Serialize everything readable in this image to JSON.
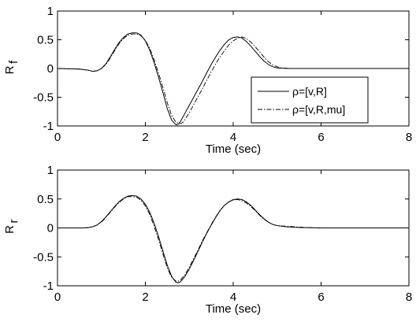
{
  "chart_data": [
    {
      "type": "line",
      "xlabel": "Time (sec)",
      "ylabel_main": "R",
      "ylabel_sub": "f",
      "xlim": [
        0,
        8
      ],
      "ylim": [
        -1,
        1
      ],
      "x_ticks": [
        "0",
        "2",
        "4",
        "6",
        "8"
      ],
      "y_ticks": [
        "1",
        "0.5",
        "0",
        "-0.5",
        "-1"
      ],
      "grid": false,
      "legend": {
        "position": "bottom-right",
        "entries": [
          "ρ=[v,R]",
          "ρ=[v,R,mu]"
        ]
      },
      "series": [
        {
          "name": "ρ=[v,R]",
          "style": "solid",
          "x": [
            0,
            0.5,
            0.7,
            0.8,
            0.9,
            1.0,
            1.1,
            1.2,
            1.3,
            1.4,
            1.5,
            1.6,
            1.7,
            1.8,
            1.9,
            2.0,
            2.1,
            2.2,
            2.3,
            2.4,
            2.5,
            2.6,
            2.7,
            2.75,
            2.8,
            2.9,
            3.0,
            3.1,
            3.2,
            3.3,
            3.4,
            3.5,
            3.6,
            3.7,
            3.8,
            3.9,
            4.0,
            4.1,
            4.2,
            4.3,
            4.4,
            4.5,
            4.6,
            4.7,
            4.8,
            4.9,
            5.0,
            5.1,
            5.2,
            5.3,
            5.4,
            5.5,
            6.0,
            8.0
          ],
          "y": [
            0,
            -0.01,
            -0.03,
            -0.05,
            -0.04,
            0.0,
            0.08,
            0.2,
            0.33,
            0.45,
            0.54,
            0.6,
            0.62,
            0.62,
            0.58,
            0.48,
            0.32,
            0.1,
            -0.15,
            -0.42,
            -0.7,
            -0.9,
            -0.98,
            -0.97,
            -0.92,
            -0.78,
            -0.64,
            -0.5,
            -0.36,
            -0.22,
            -0.07,
            0.07,
            0.2,
            0.32,
            0.42,
            0.5,
            0.54,
            0.55,
            0.53,
            0.47,
            0.39,
            0.3,
            0.21,
            0.13,
            0.07,
            0.03,
            0.01,
            0.005,
            0.002,
            0.0,
            0.0,
            0.0,
            0.0,
            0.0
          ]
        },
        {
          "name": "ρ=[v,R,mu]",
          "style": "dashdot",
          "x": [
            0,
            0.5,
            0.7,
            0.8,
            0.9,
            1.0,
            1.1,
            1.2,
            1.3,
            1.4,
            1.5,
            1.6,
            1.7,
            1.8,
            1.9,
            2.0,
            2.1,
            2.2,
            2.3,
            2.4,
            2.5,
            2.6,
            2.7,
            2.8,
            2.85,
            2.9,
            3.0,
            3.1,
            3.2,
            3.3,
            3.4,
            3.5,
            3.6,
            3.7,
            3.8,
            3.9,
            4.0,
            4.1,
            4.2,
            4.3,
            4.4,
            4.5,
            4.6,
            4.7,
            4.8,
            4.9,
            5.0,
            5.1,
            5.2,
            5.3,
            5.4,
            5.5,
            6.0,
            8.0
          ],
          "y": [
            0,
            -0.01,
            -0.03,
            -0.05,
            -0.04,
            0.0,
            0.07,
            0.18,
            0.31,
            0.43,
            0.52,
            0.58,
            0.6,
            0.6,
            0.57,
            0.49,
            0.35,
            0.15,
            -0.08,
            -0.33,
            -0.6,
            -0.82,
            -0.94,
            -0.96,
            -0.94,
            -0.89,
            -0.77,
            -0.63,
            -0.49,
            -0.35,
            -0.2,
            -0.06,
            0.08,
            0.2,
            0.31,
            0.41,
            0.48,
            0.53,
            0.55,
            0.52,
            0.46,
            0.38,
            0.29,
            0.2,
            0.12,
            0.06,
            0.03,
            0.01,
            0.005,
            0.0,
            0.0,
            0.0,
            0.0,
            0.0
          ]
        }
      ]
    },
    {
      "type": "line",
      "xlabel": "Time (sec)",
      "ylabel_main": "R",
      "ylabel_sub": "r",
      "xlim": [
        0,
        8
      ],
      "ylim": [
        -1,
        1
      ],
      "x_ticks": [
        "0",
        "2",
        "4",
        "6",
        "8"
      ],
      "y_ticks": [
        "1",
        "0.5",
        "0",
        "-0.5",
        "-1"
      ],
      "grid": false,
      "series": [
        {
          "style": "solid",
          "x": [
            0,
            0.6,
            0.7,
            0.8,
            0.9,
            1.0,
            1.1,
            1.2,
            1.3,
            1.4,
            1.5,
            1.6,
            1.7,
            1.8,
            1.9,
            2.0,
            2.1,
            2.2,
            2.3,
            2.4,
            2.5,
            2.6,
            2.7,
            2.75,
            2.8,
            2.9,
            3.0,
            3.1,
            3.2,
            3.3,
            3.4,
            3.5,
            3.6,
            3.7,
            3.8,
            3.9,
            4.0,
            4.1,
            4.2,
            4.3,
            4.4,
            4.5,
            4.6,
            4.7,
            4.8,
            4.9,
            5.0,
            5.2,
            5.4,
            5.6,
            6.0,
            8.0
          ],
          "y": [
            0,
            0.0,
            0.005,
            0.02,
            0.05,
            0.11,
            0.19,
            0.28,
            0.37,
            0.45,
            0.51,
            0.55,
            0.56,
            0.55,
            0.5,
            0.41,
            0.27,
            0.08,
            -0.15,
            -0.4,
            -0.65,
            -0.84,
            -0.94,
            -0.95,
            -0.93,
            -0.84,
            -0.71,
            -0.56,
            -0.4,
            -0.24,
            -0.09,
            0.05,
            0.18,
            0.3,
            0.39,
            0.45,
            0.49,
            0.5,
            0.49,
            0.45,
            0.39,
            0.31,
            0.23,
            0.16,
            0.1,
            0.06,
            0.04,
            0.02,
            0.01,
            0.005,
            0.0,
            0.0
          ]
        },
        {
          "style": "dashdot",
          "x": [
            0,
            0.6,
            0.7,
            0.8,
            0.9,
            1.0,
            1.1,
            1.2,
            1.3,
            1.4,
            1.5,
            1.6,
            1.7,
            1.8,
            1.9,
            2.0,
            2.1,
            2.2,
            2.3,
            2.4,
            2.5,
            2.6,
            2.7,
            2.75,
            2.8,
            2.9,
            3.0,
            3.1,
            3.2,
            3.3,
            3.4,
            3.5,
            3.6,
            3.7,
            3.8,
            3.9,
            4.0,
            4.1,
            4.2,
            4.3,
            4.4,
            4.5,
            4.6,
            4.7,
            4.8,
            4.9,
            5.0,
            5.2,
            5.4,
            5.6,
            6.0,
            8.0
          ],
          "y": [
            0,
            0.0,
            0.005,
            0.02,
            0.05,
            0.1,
            0.18,
            0.27,
            0.36,
            0.44,
            0.5,
            0.54,
            0.54,
            0.53,
            0.48,
            0.38,
            0.23,
            0.03,
            -0.2,
            -0.45,
            -0.69,
            -0.86,
            -0.92,
            -0.92,
            -0.9,
            -0.81,
            -0.68,
            -0.53,
            -0.38,
            -0.22,
            -0.08,
            0.06,
            0.19,
            0.3,
            0.39,
            0.45,
            0.48,
            0.49,
            0.47,
            0.43,
            0.37,
            0.3,
            0.22,
            0.15,
            0.1,
            0.06,
            0.04,
            0.03,
            0.02,
            0.01,
            0.0,
            0.0
          ]
        }
      ]
    }
  ]
}
